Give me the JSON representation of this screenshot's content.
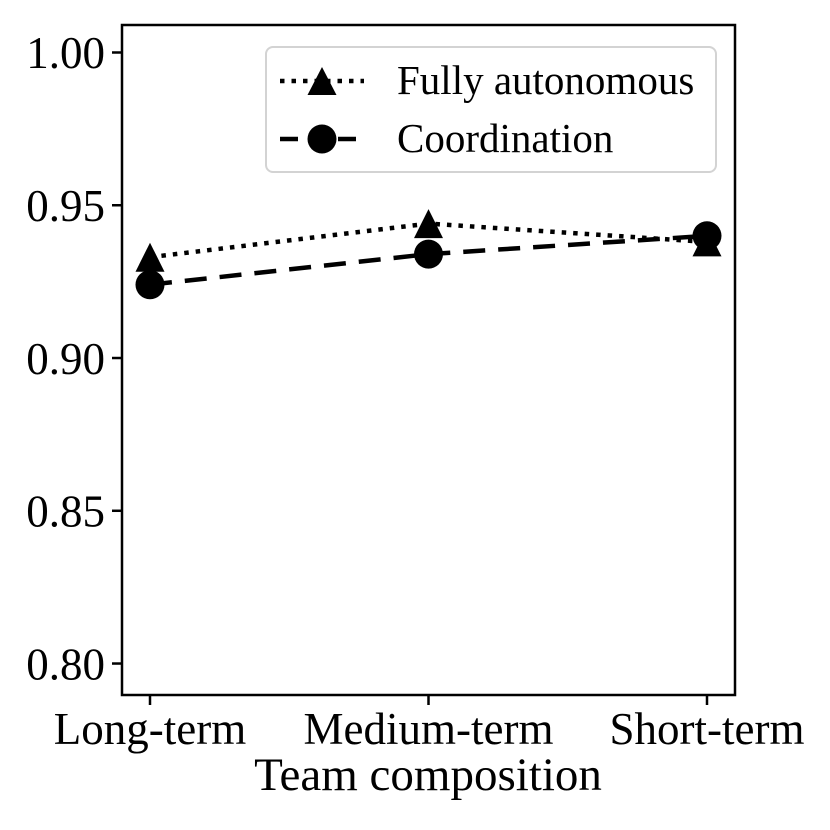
{
  "figure": {
    "background": "#ffffff",
    "ink_color": "#000000",
    "legend_border_color": "#d3d3d3"
  },
  "chart_data": {
    "type": "line",
    "categories": [
      "Long-term",
      "Medium-term",
      "Short-term"
    ],
    "series": [
      {
        "name": "Fully autonomous",
        "values": [
          0.933,
          0.944,
          0.938
        ],
        "marker": "triangle",
        "linestyle": "dotted",
        "color": "#000000"
      },
      {
        "name": "Coordination",
        "values": [
          0.924,
          0.934,
          0.94
        ],
        "marker": "circle",
        "linestyle": "dashed",
        "color": "#000000"
      }
    ],
    "title": "",
    "xlabel": "Team composition",
    "ylabel": "",
    "ylim": [
      0.7897,
      1.009
    ],
    "yticks": [
      0.8,
      0.85,
      0.9,
      0.95,
      1.0
    ],
    "ytick_labels": [
      "0.80",
      "0.85",
      "0.90",
      "0.95",
      "1.00"
    ],
    "grid": false,
    "legend_position": "upper center",
    "legend_entries": [
      "Fully autonomous",
      "Coordination"
    ]
  }
}
